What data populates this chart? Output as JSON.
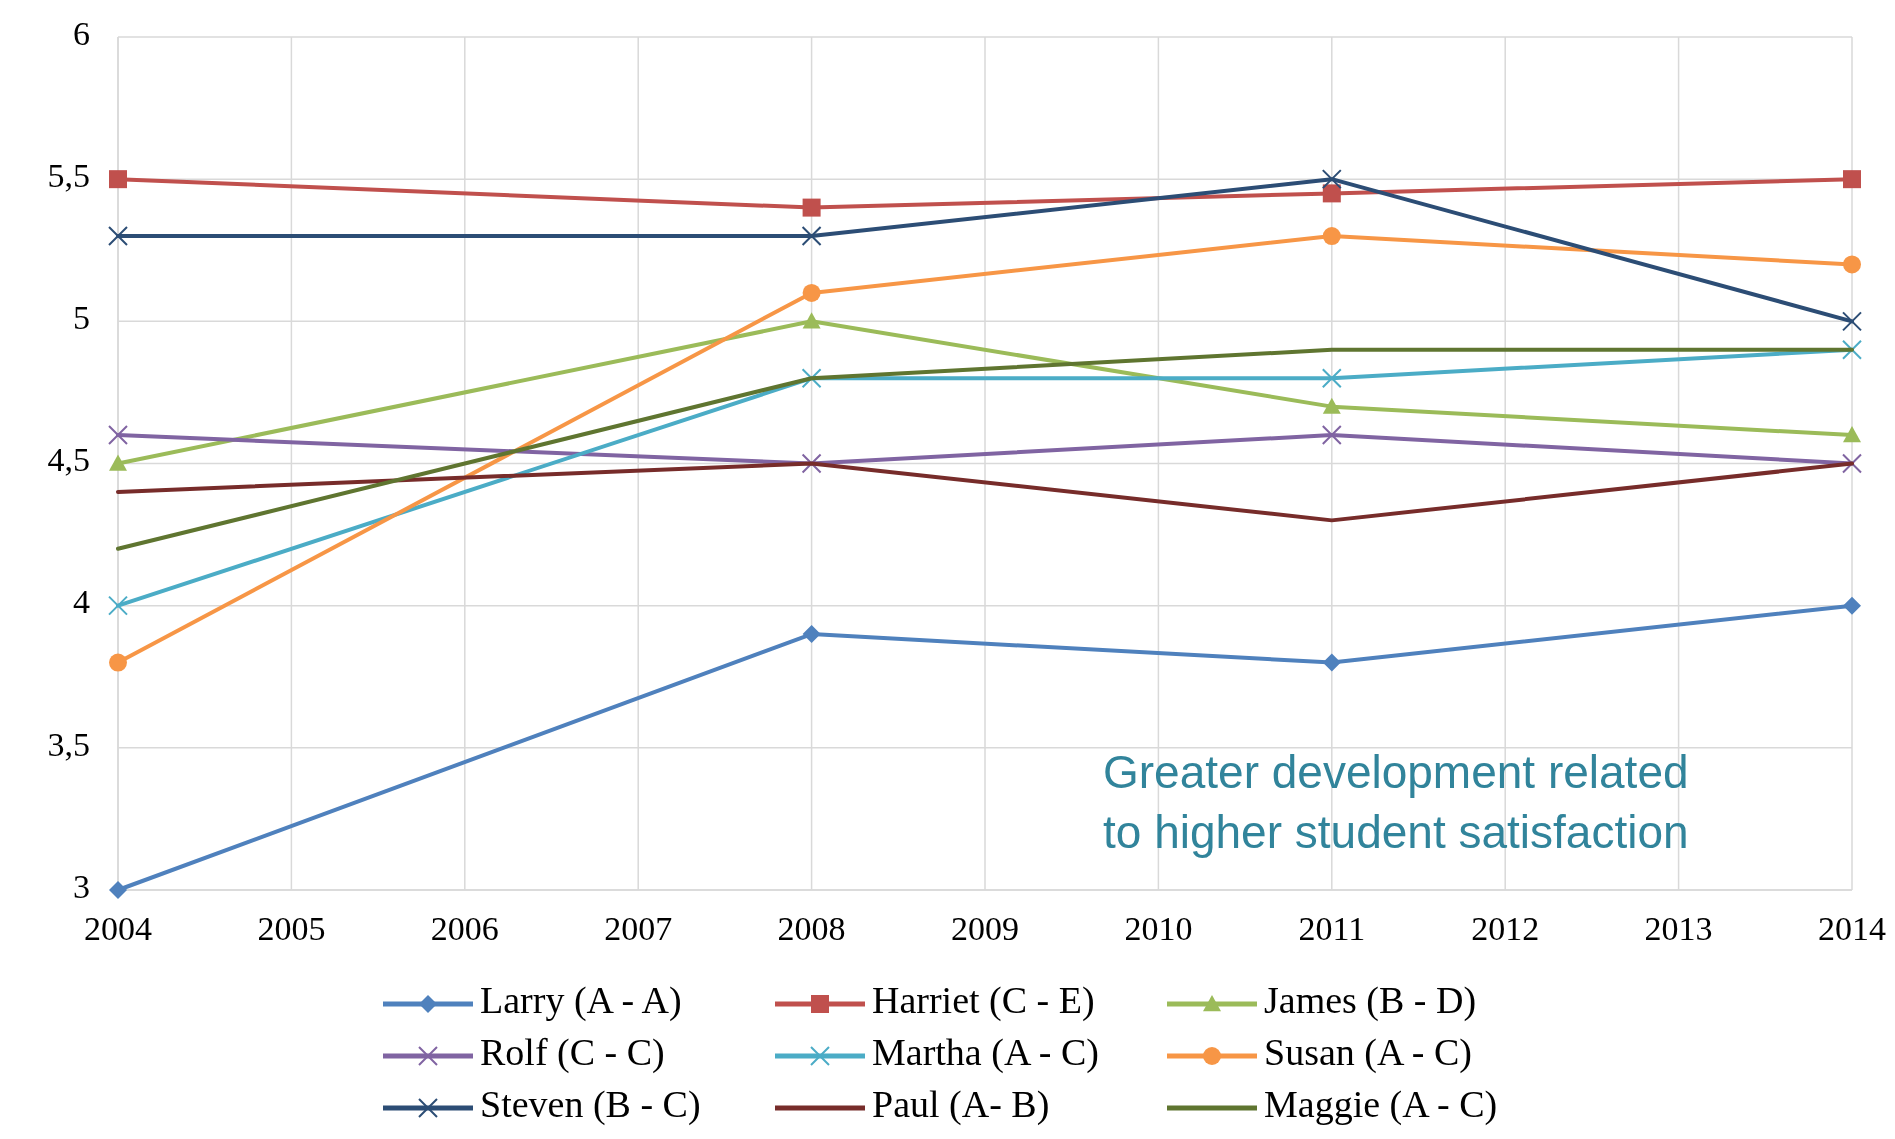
{
  "chart_data": {
    "type": "line",
    "x": [
      2004,
      2008,
      2011,
      2014
    ],
    "xlim": [
      2004,
      2014
    ],
    "xticks": [
      2004,
      2005,
      2006,
      2007,
      2008,
      2009,
      2010,
      2011,
      2012,
      2013,
      2014
    ],
    "ylim": [
      3,
      6
    ],
    "yticks": [
      3,
      {
        "value": 3.5,
        "label": "3,5"
      },
      4,
      {
        "value": 4.5,
        "label": "4,5"
      },
      5,
      {
        "value": 5.5,
        "label": "5,5"
      },
      6
    ],
    "grid": true,
    "legend": "bottom",
    "annotations": [
      "Greater development related to higher student satisfaction"
    ],
    "series": [
      {
        "name": "Larry (A - A)",
        "color": "#4f81bd",
        "marker": "diamond",
        "values": [
          3,
          3.9,
          3.8,
          4.0
        ]
      },
      {
        "name": "Harriet (C - E)",
        "color": "#c0504d",
        "marker": "square",
        "values": [
          5.5,
          5.4,
          5.45,
          5.5
        ]
      },
      {
        "name": "James (B - D)",
        "color": "#9bbb59",
        "marker": "triangle",
        "values": [
          4.5,
          5.0,
          4.7,
          4.6
        ]
      },
      {
        "name": "Rolf (C - C)",
        "color": "#8064a2",
        "marker": "cross",
        "values": [
          4.6,
          4.5,
          4.6,
          4.5
        ]
      },
      {
        "name": "Martha (A - C)",
        "color": "#4bacc6",
        "marker": "cross",
        "values": [
          4.0,
          4.8,
          4.8,
          4.9
        ]
      },
      {
        "name": "Susan (A - C)",
        "color": "#f79646",
        "marker": "circle",
        "values": [
          3.8,
          5.1,
          5.3,
          5.2
        ]
      },
      {
        "name": "Steven (B - C)",
        "color": "#2c4d75",
        "marker": "cross",
        "values": [
          5.3,
          5.3,
          5.5,
          5.0
        ]
      },
      {
        "name": "Paul (A- B)",
        "color": "#772c2a",
        "marker": "none",
        "values": [
          4.4,
          4.5,
          4.3,
          4.5
        ]
      },
      {
        "name": "Maggie (A - C)",
        "color": "#5f7530",
        "marker": "none",
        "values": [
          4.2,
          4.8,
          4.9,
          4.9
        ]
      }
    ]
  }
}
